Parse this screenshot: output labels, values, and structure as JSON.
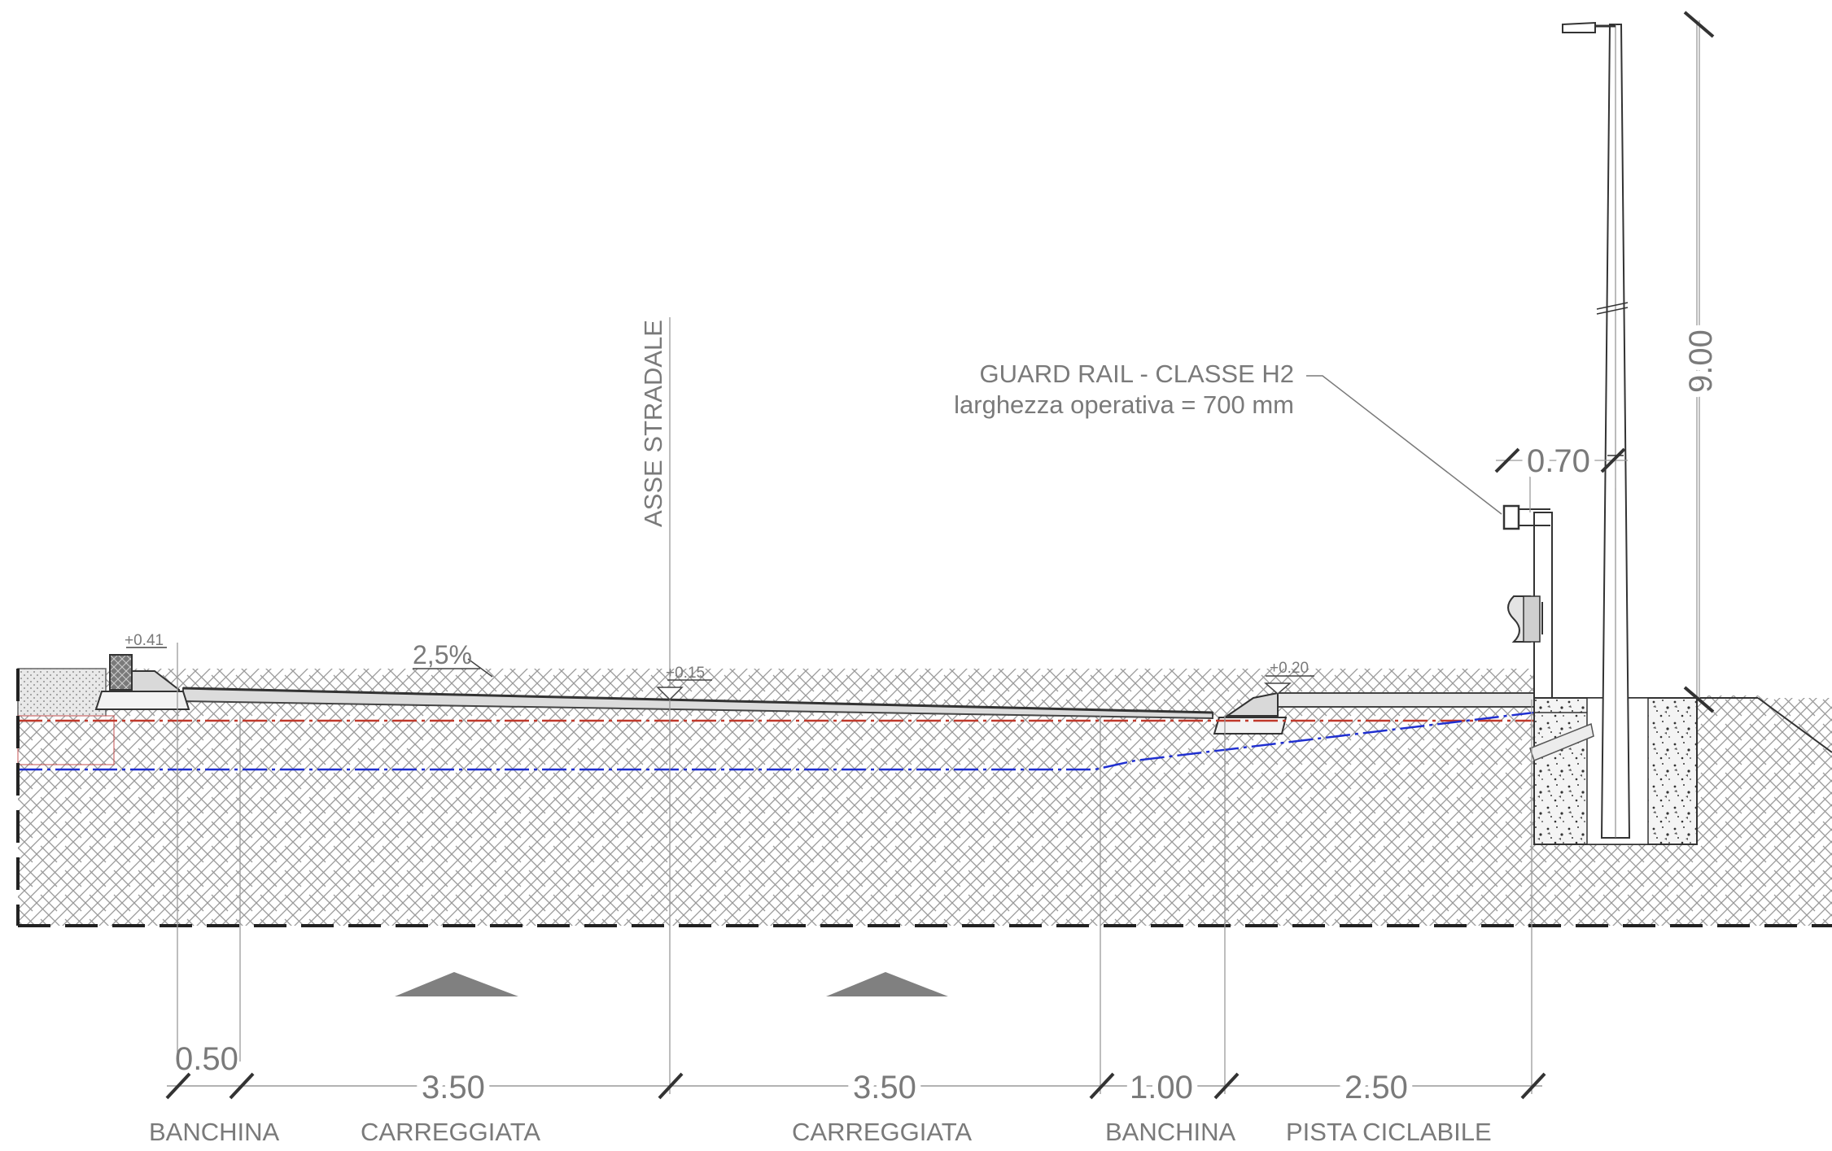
{
  "labels": {
    "axis": "ASSE STRADALE",
    "guard_rail_line1": "GUARD RAIL - CLASSE H2",
    "guard_rail_line2": "larghezza operativa = 700 mm",
    "slope": "2,5%",
    "elev_left": "+0.41",
    "elev_center": "+0.15",
    "elev_right": "+0.20"
  },
  "dimensions": {
    "banchina_left": "0.50",
    "carreggiata_1": "3.50",
    "carreggiata_2": "3.50",
    "banchina_right": "1.00",
    "pista_ciclabile": "2.50",
    "guard_rail_width": "0.70",
    "pole_height": "9.00"
  },
  "bottom_labels": {
    "banchina_left": "BANCHINA",
    "carreggiata_1": "CARREGGIATA",
    "carreggiata_2": "CARREGGIATA",
    "banchina_right": "BANCHINA",
    "pista_ciclabile": "PISTA CICLABILE"
  },
  "colors": {
    "line": "#4a4a4a",
    "text": "#7a7a7a",
    "hatch": "#8a8a8a",
    "red_line": "#c0392b",
    "blue_line": "#1f2fd0",
    "arrow_fill": "#808080"
  }
}
